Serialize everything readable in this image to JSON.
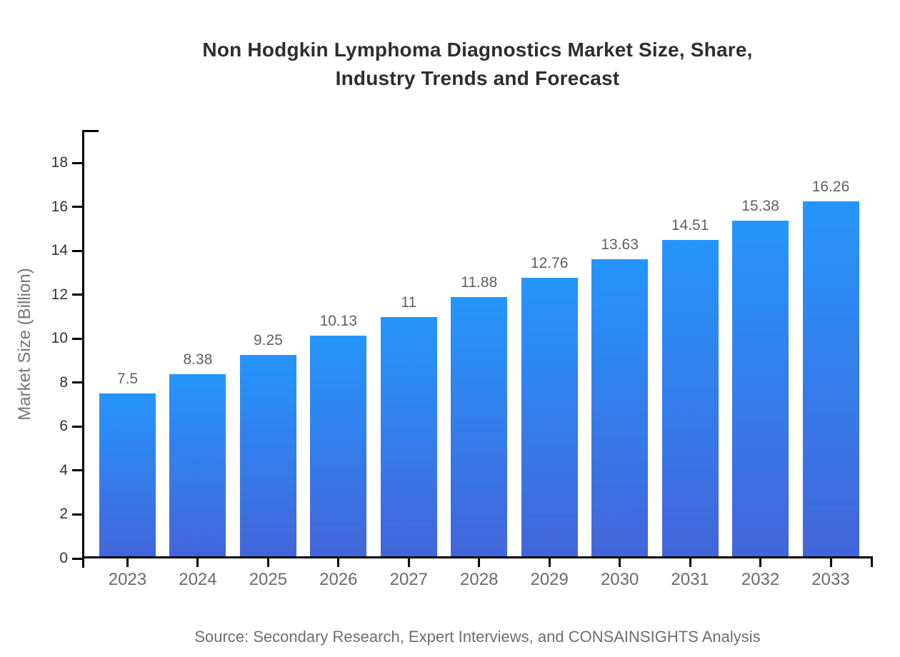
{
  "chart_data": {
    "type": "bar",
    "title_line1": "Non Hodgkin Lymphoma Diagnostics Market Size, Share,",
    "title_line2": "Industry Trends and Forecast",
    "ylabel": "Market Size (Billion)",
    "categories": [
      "2023",
      "2024",
      "2025",
      "2026",
      "2027",
      "2028",
      "2029",
      "2030",
      "2031",
      "2032",
      "2033"
    ],
    "values": [
      7.5,
      8.38,
      9.25,
      10.13,
      11,
      11.88,
      12.76,
      13.63,
      14.51,
      15.38,
      16.26
    ],
    "value_labels": [
      "7.5",
      "8.38",
      "9.25",
      "10.13",
      "11",
      "11.88",
      "12.76",
      "13.63",
      "14.51",
      "15.38",
      "16.26"
    ],
    "yticks": [
      0,
      2,
      4,
      6,
      8,
      10,
      12,
      14,
      16,
      18
    ],
    "ylim": [
      0,
      19.5
    ],
    "grid": false,
    "legend_position": "none",
    "source": "Source: Secondary Research, Expert Interviews, and CONSAINSIGHTS Analysis",
    "colors": {
      "bar_gradient_top": "#2595FB",
      "bar_gradient_bottom": "#4365D9",
      "axis": "#000000",
      "ytick_label": "#333333",
      "xtick_label": "#6b6b6b",
      "value_label": "#606060",
      "title": "#2e2e2e",
      "ylabel": "#757575",
      "source": "#6e6e6e"
    }
  }
}
